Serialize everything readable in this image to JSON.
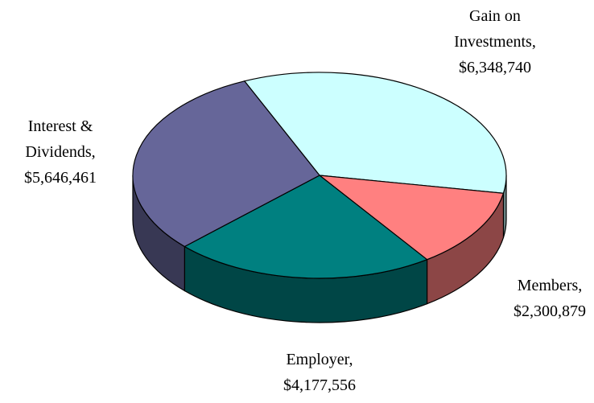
{
  "chart_data": {
    "type": "pie3d",
    "categories": [
      "Gain on Investments,",
      "Members,",
      "Employer,",
      "Interest & Dividends,"
    ],
    "values": [
      6348740,
      2300879,
      4177556,
      5646461
    ],
    "value_labels": [
      "$6,348,740",
      "$2,300,879",
      "$4,177,556",
      "$5,646,461"
    ],
    "colors": [
      "#ccffff",
      "#ff8080",
      "#008080",
      "#666699"
    ]
  }
}
